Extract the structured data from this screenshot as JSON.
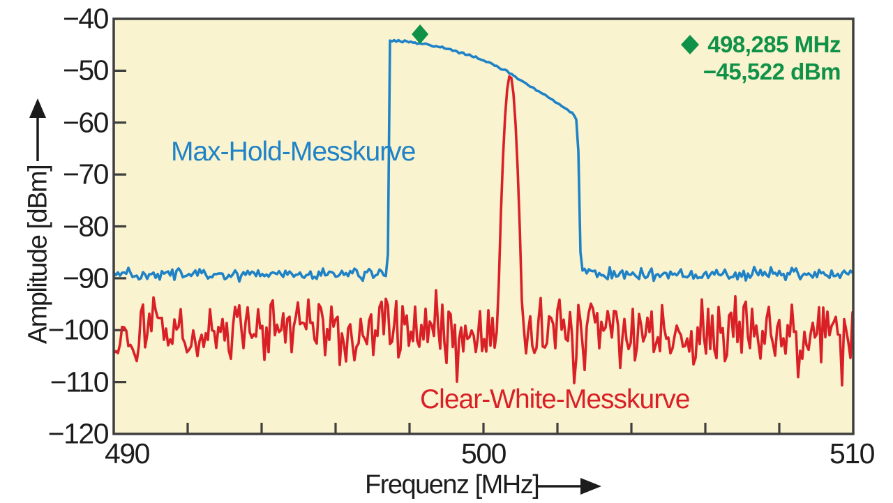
{
  "chart_data": {
    "type": "line",
    "title": "",
    "xlabel": "Frequenz [MHz]",
    "ylabel": "Amplitude [dBm]",
    "xlim": [
      490,
      510
    ],
    "ylim": [
      -120,
      -40
    ],
    "x_unit": "MHz",
    "y_unit": "dBm",
    "grid": false,
    "plot_background": "#f9f3cf",
    "frame_color": "#3f3f3f",
    "tick_color": "#3f3f3f",
    "x_major_tick_values": [
      490,
      500,
      510
    ],
    "x_major_tick_labels": [
      "490",
      "500",
      "510"
    ],
    "x_minor_tick_step_mhz": 2,
    "x_minor_tick_values": [
      492,
      494,
      496,
      498,
      500,
      502,
      504,
      506,
      508
    ],
    "y_tick_values": [
      -40,
      -50,
      -60,
      -70,
      -80,
      -90,
      -100,
      -110,
      -120
    ],
    "y_tick_labels": [
      "−40",
      "−50",
      "−60",
      "−70",
      "−80",
      "−90",
      "−100",
      "−110",
      "−120"
    ],
    "legend_position": "top-right",
    "series": [
      {
        "name": "Clear-White-Messkurve",
        "color": "#da2027",
        "kind": "clear-write noisy trace",
        "noise_mean_dbm": -100.3,
        "noise_min_dbm": -113.5,
        "noise_max_dbm": -92.3,
        "peak": {
          "center_mhz": 500.72,
          "top_dbm": -50.9,
          "base_width_mhz": 0.68
        }
      },
      {
        "name": "Max-Hold-Messkurve",
        "color": "#1f82c6",
        "kind": "max-hold trace",
        "noise_floor_dbm": -89.2,
        "noise_peak_to_peak_db": 3,
        "envelope_points": [
          [
            490.0,
            -89.2
          ],
          [
            497.41,
            -89.2
          ],
          [
            497.47,
            -44.2
          ],
          [
            497.8,
            -44.3
          ],
          [
            498.285,
            -44.7
          ],
          [
            499.0,
            -45.7
          ],
          [
            499.8,
            -47.4
          ],
          [
            500.4,
            -49.2
          ],
          [
            500.72,
            -50.4
          ],
          [
            501.2,
            -52.7
          ],
          [
            501.8,
            -55.3
          ],
          [
            502.3,
            -57.7
          ],
          [
            502.42,
            -58.2
          ],
          [
            502.48,
            -59.0
          ],
          [
            502.55,
            -60.0
          ],
          [
            502.63,
            -87.5
          ],
          [
            510.0,
            -89.2
          ]
        ]
      }
    ],
    "marker": {
      "symbol": "diamond",
      "color": "#0f9147",
      "frequency_mhz": 498.285,
      "amplitude_dbm": -45.522,
      "frequency_label": "498,285 MHz",
      "amplitude_label": "−45,522 dBm"
    }
  },
  "labels": {
    "xlabel": "Frequenz [MHz]",
    "ylabel": "Amplitude [dBm]",
    "max_hold": "Max-Hold-Messkurve",
    "clear_white": "Clear-White-Messkurve",
    "legend_line1": "498,285 MHz",
    "legend_line2": "−45,522 dBm"
  }
}
